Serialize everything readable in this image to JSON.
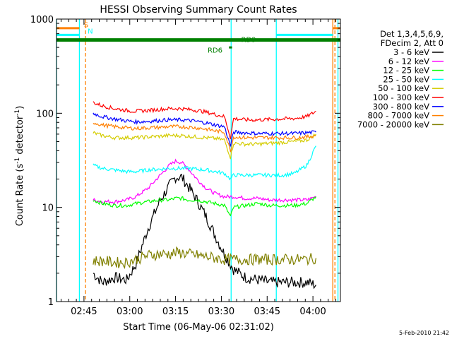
{
  "chart_data": {
    "type": "line",
    "title": "HESSI Observing Summary Count Rates",
    "xlabel": "Start Time (06-May-06 02:31:02)",
    "ylabel_main": "Count Rate (s",
    "ylabel_sup1": "-1",
    "ylabel_mid": " detector",
    "ylabel_sup2": "-1",
    "ylabel_end": ")",
    "yscale": "log",
    "ylim": [
      1,
      1000
    ],
    "xlim_min": [
      156,
      249
    ],
    "y_ticks": [
      "1",
      "10",
      "100",
      "1000"
    ],
    "x_ticks": [
      {
        "label": "02:45",
        "min": 165
      },
      {
        "label": "03:00",
        "min": 180
      },
      {
        "label": "03:15",
        "min": 195
      },
      {
        "label": "03:30",
        "min": 210
      },
      {
        "label": "03:45",
        "min": 225
      },
      {
        "label": "04:00",
        "min": 240
      }
    ],
    "legend_header": [
      "Det 1,3,4,5,6,9,",
      "FDecim 2, Att 0"
    ],
    "legend_position": "right",
    "series": [
      {
        "name": "3 - 6 keV",
        "color": "#000000",
        "points": [
          [
            168,
            2.0
          ],
          [
            171,
            1.6
          ],
          [
            175,
            1.8
          ],
          [
            179,
            1.7
          ],
          [
            182,
            2.5
          ],
          [
            186,
            6
          ],
          [
            190,
            12
          ],
          [
            193,
            17
          ],
          [
            195,
            21
          ],
          [
            197,
            21
          ],
          [
            199,
            17
          ],
          [
            202,
            12
          ],
          [
            205,
            8
          ],
          [
            208,
            5
          ],
          [
            211,
            3.2
          ],
          [
            214,
            2.2
          ],
          [
            218,
            1.8
          ],
          [
            222,
            1.7
          ],
          [
            226,
            1.6
          ],
          [
            230,
            1.6
          ],
          [
            234,
            1.6
          ],
          [
            238,
            1.6
          ],
          [
            241,
            1.5
          ]
        ]
      },
      {
        "name": "6 - 12 keV",
        "color": "#ff00ff",
        "points": [
          [
            168,
            12
          ],
          [
            171,
            11.5
          ],
          [
            175,
            11.5
          ],
          [
            179,
            12
          ],
          [
            182,
            13
          ],
          [
            186,
            16
          ],
          [
            190,
            22
          ],
          [
            193,
            28
          ],
          [
            195,
            31
          ],
          [
            197,
            30
          ],
          [
            199,
            26
          ],
          [
            202,
            20
          ],
          [
            205,
            16
          ],
          [
            208,
            14
          ],
          [
            211,
            13
          ],
          [
            214,
            13
          ],
          [
            218,
            12.5
          ],
          [
            222,
            12.5
          ],
          [
            226,
            12
          ],
          [
            230,
            12
          ],
          [
            234,
            12
          ],
          [
            238,
            12
          ],
          [
            241,
            13
          ]
        ]
      },
      {
        "name": "12 - 25 keV",
        "color": "#00ff00",
        "points": [
          [
            168,
            12
          ],
          [
            171,
            11
          ],
          [
            175,
            10.5
          ],
          [
            179,
            10.5
          ],
          [
            182,
            11
          ],
          [
            186,
            11.5
          ],
          [
            190,
            12
          ],
          [
            193,
            12
          ],
          [
            195,
            12.5
          ],
          [
            197,
            12.5
          ],
          [
            199,
            12
          ],
          [
            202,
            12
          ],
          [
            205,
            11.5
          ],
          [
            208,
            11
          ],
          [
            211,
            10.5
          ],
          [
            213,
            8
          ],
          [
            214,
            10
          ],
          [
            218,
            10.5
          ],
          [
            222,
            11
          ],
          [
            226,
            10.5
          ],
          [
            230,
            10.5
          ],
          [
            234,
            10.5
          ],
          [
            238,
            11
          ],
          [
            241,
            13
          ]
        ]
      },
      {
        "name": "25 - 50 keV",
        "color": "#00ffff",
        "points": [
          [
            168,
            28
          ],
          [
            171,
            26
          ],
          [
            175,
            25
          ],
          [
            179,
            24
          ],
          [
            182,
            24
          ],
          [
            186,
            25
          ],
          [
            190,
            25.5
          ],
          [
            193,
            26
          ],
          [
            195,
            26
          ],
          [
            197,
            26
          ],
          [
            199,
            26
          ],
          [
            202,
            25.5
          ],
          [
            205,
            25
          ],
          [
            208,
            24
          ],
          [
            211,
            23
          ],
          [
            213,
            20
          ],
          [
            214,
            22
          ],
          [
            218,
            22
          ],
          [
            222,
            22
          ],
          [
            226,
            22
          ],
          [
            230,
            22
          ],
          [
            234,
            23
          ],
          [
            238,
            28
          ],
          [
            241,
            45
          ]
        ]
      },
      {
        "name": "50 - 100 keV",
        "color": "#d4cc00",
        "points": [
          [
            168,
            62
          ],
          [
            171,
            58
          ],
          [
            175,
            55
          ],
          [
            179,
            55
          ],
          [
            182,
            55
          ],
          [
            186,
            56
          ],
          [
            190,
            57
          ],
          [
            193,
            58
          ],
          [
            195,
            58
          ],
          [
            197,
            58
          ],
          [
            199,
            57
          ],
          [
            202,
            56
          ],
          [
            205,
            55
          ],
          [
            208,
            54
          ],
          [
            211,
            52
          ],
          [
            213,
            34
          ],
          [
            214,
            48
          ],
          [
            218,
            47
          ],
          [
            222,
            47
          ],
          [
            226,
            48
          ],
          [
            230,
            49
          ],
          [
            234,
            50
          ],
          [
            238,
            52
          ],
          [
            241,
            60
          ]
        ]
      },
      {
        "name": "100 - 300 keV",
        "color": "#ff0000",
        "points": [
          [
            168,
            130
          ],
          [
            171,
            120
          ],
          [
            175,
            112
          ],
          [
            179,
            107
          ],
          [
            182,
            105
          ],
          [
            186,
            107
          ],
          [
            190,
            110
          ],
          [
            193,
            112
          ],
          [
            195,
            112
          ],
          [
            197,
            112
          ],
          [
            199,
            110
          ],
          [
            202,
            107
          ],
          [
            205,
            103
          ],
          [
            208,
            97
          ],
          [
            211,
            92
          ],
          [
            213,
            55
          ],
          [
            214,
            88
          ],
          [
            218,
            85
          ],
          [
            222,
            85
          ],
          [
            226,
            86
          ],
          [
            230,
            87
          ],
          [
            234,
            88
          ],
          [
            238,
            92
          ],
          [
            241,
            105
          ]
        ]
      },
      {
        "name": "300 - 800 keV",
        "color": "#0000ff",
        "points": [
          [
            168,
            100
          ],
          [
            171,
            92
          ],
          [
            175,
            87
          ],
          [
            179,
            83
          ],
          [
            182,
            81
          ],
          [
            186,
            82
          ],
          [
            190,
            84
          ],
          [
            193,
            85
          ],
          [
            195,
            85
          ],
          [
            197,
            85
          ],
          [
            199,
            84
          ],
          [
            202,
            82
          ],
          [
            205,
            79
          ],
          [
            208,
            75
          ],
          [
            211,
            72
          ],
          [
            213,
            45
          ],
          [
            214,
            63
          ],
          [
            218,
            62
          ],
          [
            222,
            61
          ],
          [
            226,
            61
          ],
          [
            230,
            61
          ],
          [
            234,
            61
          ],
          [
            238,
            62
          ],
          [
            241,
            63
          ]
        ]
      },
      {
        "name": "800 - 7000 keV",
        "color": "#ff8000",
        "points": [
          [
            168,
            80
          ],
          [
            171,
            75
          ],
          [
            175,
            72
          ],
          [
            179,
            70
          ],
          [
            182,
            69
          ],
          [
            186,
            70
          ],
          [
            190,
            71
          ],
          [
            193,
            72
          ],
          [
            195,
            72
          ],
          [
            197,
            72
          ],
          [
            199,
            71
          ],
          [
            202,
            70
          ],
          [
            205,
            68
          ],
          [
            208,
            65
          ],
          [
            211,
            63
          ],
          [
            213,
            40
          ],
          [
            214,
            56
          ],
          [
            218,
            55
          ],
          [
            222,
            55
          ],
          [
            226,
            55
          ],
          [
            230,
            55
          ],
          [
            234,
            55
          ],
          [
            238,
            56
          ],
          [
            241,
            58
          ]
        ]
      },
      {
        "name": "7000 - 20000 keV",
        "color": "#808000",
        "points": [
          [
            168,
            2.7
          ],
          [
            171,
            2.7
          ],
          [
            175,
            2.6
          ],
          [
            179,
            2.6
          ],
          [
            182,
            2.8
          ],
          [
            186,
            3.1
          ],
          [
            190,
            3.2
          ],
          [
            193,
            3.2
          ],
          [
            195,
            3.3
          ],
          [
            197,
            3.3
          ],
          [
            199,
            3.2
          ],
          [
            202,
            3.1
          ],
          [
            205,
            3.0
          ],
          [
            208,
            2.9
          ],
          [
            211,
            2.8
          ],
          [
            214,
            2.8
          ],
          [
            218,
            2.8
          ],
          [
            222,
            2.8
          ],
          [
            226,
            2.8
          ],
          [
            230,
            2.8
          ],
          [
            234,
            2.8
          ],
          [
            238,
            2.8
          ],
          [
            241,
            2.9
          ]
        ]
      }
    ],
    "flag_bars": [
      {
        "color": "#ff8000",
        "y": 800,
        "segments": [
          [
            156,
            163.5
          ],
          [
            246.5,
            249
          ]
        ]
      },
      {
        "color": "#00ffff",
        "y": 680,
        "segments": [
          [
            156,
            163.5
          ],
          [
            228,
            246.5
          ]
        ]
      },
      {
        "color": "#008000",
        "y": 610,
        "segments": [
          [
            156,
            249
          ]
        ]
      },
      {
        "color": "#008000",
        "y": 590,
        "segments": [
          [
            156,
            249
          ]
        ]
      }
    ],
    "flag_labels": [
      {
        "text": "S",
        "color": "#ff8000",
        "min": 165,
        "y": 820
      },
      {
        "text": "N",
        "color": "#00ffff",
        "min": 166.2,
        "y": 700
      },
      {
        "text": "RD9",
        "color": "#008000",
        "min": 216.5,
        "y": 570
      },
      {
        "text": "RD6",
        "color": "#008000",
        "min": 205.5,
        "y": 440
      }
    ],
    "rd_marker": {
      "min": [
        212.5,
        213.5
      ],
      "y": 500,
      "color": "#008000"
    },
    "vlines": [
      {
        "min": 156,
        "color": "#00ffff",
        "dash": false
      },
      {
        "min": 163.5,
        "color": "#00ffff",
        "dash": false
      },
      {
        "min": 165.5,
        "color": "#ff8000",
        "dash": true
      },
      {
        "min": 213.2,
        "color": "#00ffff",
        "dash": false
      },
      {
        "min": 228,
        "color": "#00ffff",
        "dash": false
      },
      {
        "min": 246.5,
        "color": "#ff8000",
        "dash": false
      },
      {
        "min": 247.2,
        "color": "#ff8000",
        "dash": true
      },
      {
        "min": 248.2,
        "color": "#00ffff",
        "dash": false
      }
    ],
    "footer_date": "5-Feb-2010 21:42"
  }
}
